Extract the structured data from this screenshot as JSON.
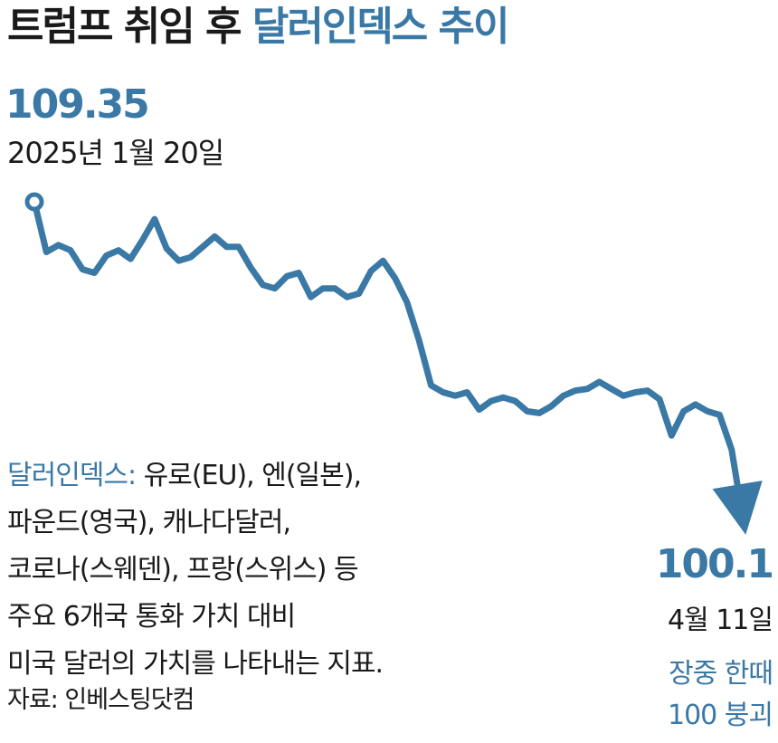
{
  "title": {
    "prefix": "트럼프 취임 후 ",
    "highlight": "달러인덱스 추이"
  },
  "start": {
    "value": "109.35",
    "date": "2025년 1월 20일"
  },
  "end": {
    "value": "100.1",
    "date": "4월 11일",
    "note_line1": "장중 한때",
    "note_line2": "100 붕괴"
  },
  "note": {
    "term": "달러인덱스:",
    "line1_rest": " 유로(EU), 엔(일본),",
    "line2": "파운드(영국), 캐나다달러,",
    "line3": "코로나(스웨덴), 프랑(스위스) 등",
    "line4": "주요 6개국 통화 가치 대비",
    "line5": "미국 달러의 가치를 나타내는 지표."
  },
  "source": "자료: 인베스팅닷컴",
  "colors": {
    "accent": "#3a78a6",
    "text": "#1a1a1a"
  },
  "chart_data": {
    "type": "line",
    "series": [
      {
        "values": [
          109.35,
          107.9,
          108.1,
          107.95,
          107.4,
          107.3,
          107.8,
          107.95,
          107.7,
          108.25,
          108.85,
          108.0,
          107.65,
          107.75,
          108.05,
          108.35,
          108.05,
          108.05,
          107.45,
          106.95,
          106.85,
          107.2,
          107.3,
          106.6,
          106.85,
          106.85,
          106.6,
          106.7,
          107.35,
          107.65,
          107.15,
          106.45,
          105.35,
          104.05,
          103.85,
          103.75,
          103.85,
          103.35,
          103.6,
          103.7,
          103.6,
          103.3,
          103.25,
          103.45,
          103.75,
          103.9,
          103.95,
          104.15,
          103.95,
          103.75,
          103.85,
          103.9,
          103.65,
          102.6,
          103.3,
          103.5,
          103.3,
          103.2,
          102.2,
          100.1
        ]
      }
    ],
    "start_label": {
      "value": 109.35,
      "date": "2025년 1월 20일"
    },
    "end_label": {
      "value": 100.1,
      "date": "4월 11일"
    },
    "grid": false,
    "legend": "none"
  }
}
